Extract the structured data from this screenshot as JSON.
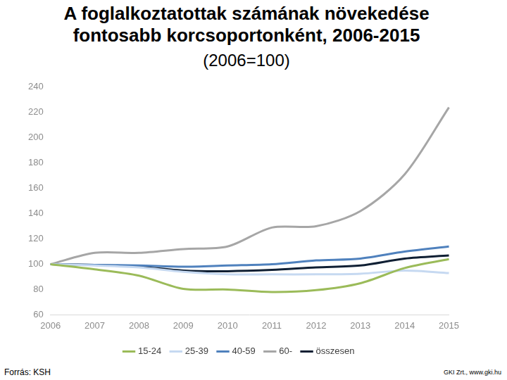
{
  "chart_data": {
    "type": "line",
    "title": "A foglalkoztatottak számának növekedése fontosabb korcsoportonként, 2006-2015",
    "subtitle": "(2006=100)",
    "annotations": [
      "Forrás: KSH",
      "GKI Zrt., www.gki.hu"
    ],
    "categories": [
      "2006",
      "2007",
      "2008",
      "2009",
      "2010",
      "2011",
      "2012",
      "2013",
      "2014",
      "2015"
    ],
    "series": [
      {
        "name": "15-24",
        "color": "#9bbb59",
        "values": [
          100,
          96,
          91,
          80.5,
          80,
          78,
          79.5,
          85,
          97,
          104
        ]
      },
      {
        "name": "25-39",
        "color": "#c6d9f1",
        "values": [
          100,
          99,
          97.5,
          94,
          92,
          92,
          92,
          92.5,
          95,
          93
        ]
      },
      {
        "name": "40-59",
        "color": "#4f81bd",
        "values": [
          100,
          99.5,
          99,
          98,
          99,
          100,
          103,
          104.5,
          110,
          114
        ]
      },
      {
        "name": "60-",
        "color": "#a6a6a6",
        "values": [
          100,
          109,
          109,
          112,
          114,
          129,
          130,
          142,
          171,
          224
        ]
      },
      {
        "name": "összesen",
        "color": "#0f1f33",
        "values": [
          100,
          99.5,
          98,
          95,
          94.5,
          95.5,
          97.5,
          99,
          104.5,
          107
        ]
      }
    ],
    "ylim": [
      60,
      240
    ],
    "yticks": [
      60,
      80,
      100,
      120,
      140,
      160,
      180,
      200,
      220,
      240
    ],
    "grid": false,
    "legend": "bottom"
  }
}
